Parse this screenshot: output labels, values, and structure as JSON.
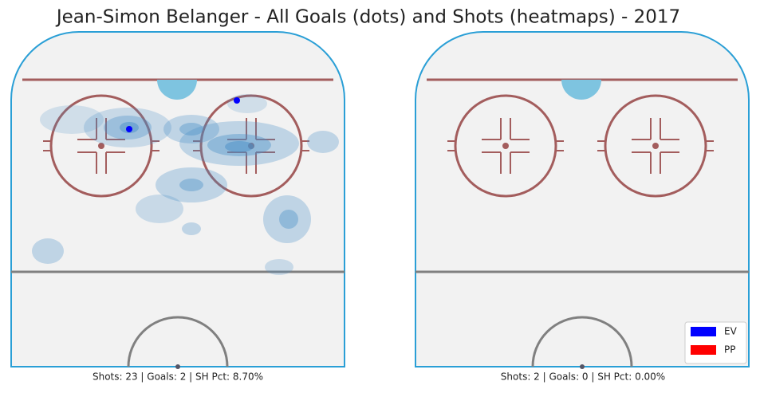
{
  "title": "Jean-Simon Belanger - All Goals (dots) and Shots (heatmaps) - 2017",
  "panels": [
    {
      "caption": "Shots: 23 | Goals: 2 | SH Pct: 8.70%"
    },
    {
      "caption": "Shots: 2 | Goals: 0 | SH Pct: 0.00%"
    }
  ],
  "legend": [
    {
      "label": "EV",
      "color": "#0000ff"
    },
    {
      "label": "PP",
      "color": "#ff0000"
    }
  ]
}
